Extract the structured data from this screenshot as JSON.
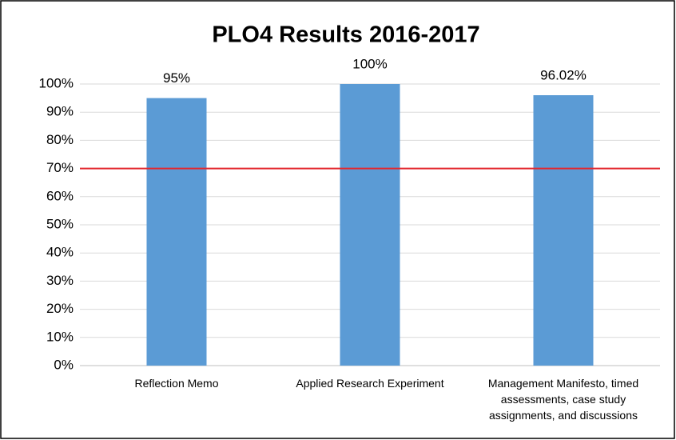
{
  "chart_data": {
    "type": "bar",
    "title": "PLO4 Results 2016-2017",
    "categories": [
      "Reflection Memo",
      "Applied Research Experiment",
      "Management Manifesto, timed assessments, case study assignments, and discussions"
    ],
    "values": [
      95,
      100,
      96.02
    ],
    "value_labels": [
      "95%",
      "100%",
      "96.02%"
    ],
    "color": "#5b9bd5",
    "ylim": [
      0,
      100
    ],
    "yticks": [
      {
        "value": 0,
        "label": "0%"
      },
      {
        "value": 10,
        "label": "10%"
      },
      {
        "value": 20,
        "label": "20%"
      },
      {
        "value": 30,
        "label": "30%"
      },
      {
        "value": 40,
        "label": "40%"
      },
      {
        "value": 50,
        "label": "50%"
      },
      {
        "value": 60,
        "label": "60%"
      },
      {
        "value": 70,
        "label": "70%"
      },
      {
        "value": 80,
        "label": "80%"
      },
      {
        "value": 90,
        "label": "90%"
      },
      {
        "value": 100,
        "label": "100%"
      }
    ],
    "grid": true,
    "reference_line": {
      "value": 70,
      "color": "#e3262c"
    }
  }
}
